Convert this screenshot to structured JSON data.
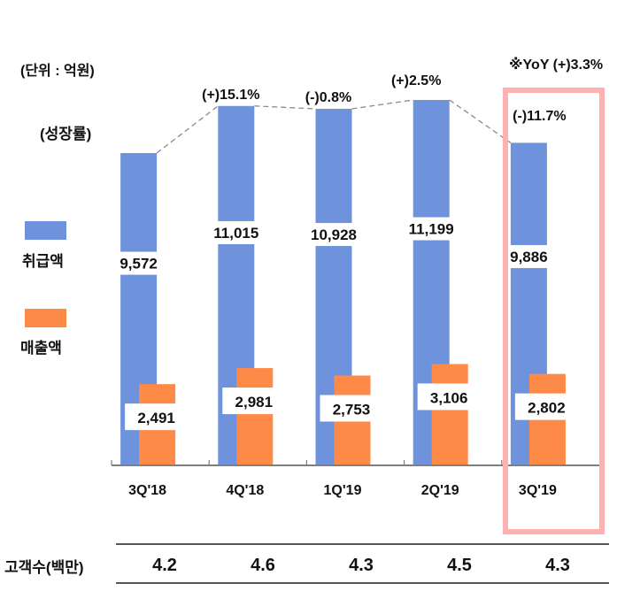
{
  "unit_label": "(단위 : 억원)",
  "growth_label": "(성장률)",
  "yoy_label": "※YoY (+)3.3%",
  "colors": {
    "transaction": "#6e93dc",
    "sales": "#fe8a48",
    "highlight_box": "#ffb0b3",
    "trend_line": "#8a8a8a",
    "axis": "#7f7f7f"
  },
  "legend": [
    {
      "name": "취급액",
      "color": "#6e93dc"
    },
    {
      "name": "매출액",
      "color": "#fe8a48"
    }
  ],
  "customers": {
    "label": "고객수(백만)",
    "values": [
      "4.2",
      "4.6",
      "4.3",
      "4.5",
      "4.3"
    ]
  },
  "chart_data": {
    "type": "bar",
    "title": "",
    "xlabel": "",
    "ylabel": "억원",
    "categories": [
      "3Q'18",
      "4Q'18",
      "1Q'19",
      "2Q'19",
      "3Q'19"
    ],
    "series": [
      {
        "name": "취급액",
        "values": [
          9572,
          11015,
          10928,
          11199,
          9886
        ],
        "labels": [
          "9,572",
          "11,015",
          "10,928",
          "11,199",
          "9,886"
        ]
      },
      {
        "name": "매출액",
        "values": [
          2491,
          2981,
          2753,
          3106,
          2802
        ],
        "labels": [
          "2,491",
          "2,981",
          "2,753",
          "3,106",
          "2,802"
        ]
      }
    ],
    "growth_rates": [
      "",
      "(+)15.1%",
      "(-)0.8%",
      "(+)2.5%",
      "(-)11.7%"
    ],
    "highlight_category": "3Q'19",
    "annotation": "※YoY (+)3.3%",
    "ylim": [
      0,
      11500
    ],
    "grid": false,
    "legend_position": "left"
  }
}
